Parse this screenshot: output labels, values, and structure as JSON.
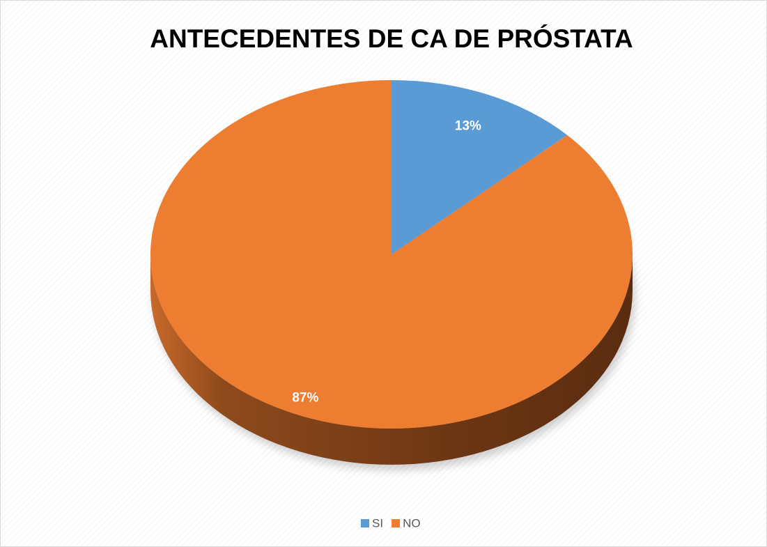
{
  "chart_data": {
    "type": "pie",
    "title": "ANTECEDENTES DE CA DE PRÓSTATA",
    "categories": [
      "SI",
      "NO"
    ],
    "values": [
      13,
      87
    ],
    "value_labels": [
      "13%",
      "87%"
    ],
    "series_colors": [
      "#5b9bd5",
      "#ed7d31"
    ],
    "legend": "bottom"
  }
}
